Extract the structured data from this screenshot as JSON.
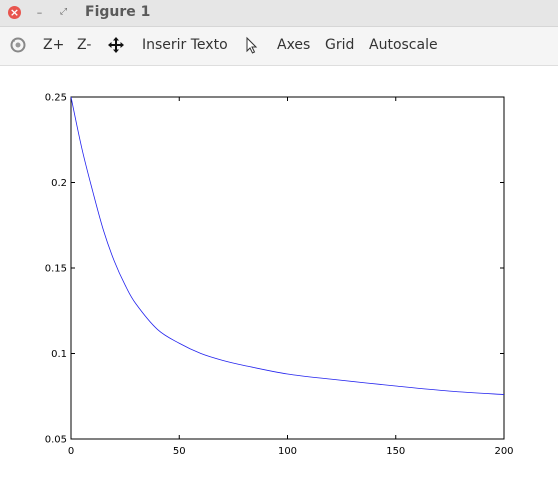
{
  "window": {
    "title": "Figure 1",
    "close_glyph": "×",
    "minimize_glyph": "–",
    "maximize_glyph": "⤢"
  },
  "toolbar": {
    "rotate_icon": "rotate-icon",
    "zoom_in_label": "Z+",
    "zoom_out_label": "Z-",
    "pan_icon": "pan-arrows-icon",
    "insert_text_label": "Inserir Texto",
    "select_icon": "cursor-arrow-icon",
    "axes_label": "Axes",
    "grid_label": "Grid",
    "autoscale_label": "Autoscale"
  },
  "colors": {
    "line": "#2222ee",
    "close_button": "#e8554e"
  },
  "chart_data": {
    "type": "line",
    "title": "",
    "xlabel": "",
    "ylabel": "",
    "xlim": [
      0,
      200
    ],
    "ylim": [
      0.05,
      0.25
    ],
    "xticks": [
      "0",
      "50",
      "100",
      "150",
      "200"
    ],
    "yticks": [
      "0.05",
      "0.1",
      "0.15",
      "0.2",
      "0.25"
    ],
    "grid": false,
    "series": [
      {
        "x": [
          0,
          5,
          10,
          15,
          20,
          25,
          30,
          40,
          50,
          60,
          70,
          80,
          100,
          120,
          150,
          175,
          200
        ],
        "y": [
          0.25,
          0.22,
          0.195,
          0.172,
          0.154,
          0.14,
          0.129,
          0.114,
          0.106,
          0.1,
          0.096,
          0.093,
          0.088,
          0.085,
          0.081,
          0.078,
          0.076
        ]
      }
    ]
  }
}
